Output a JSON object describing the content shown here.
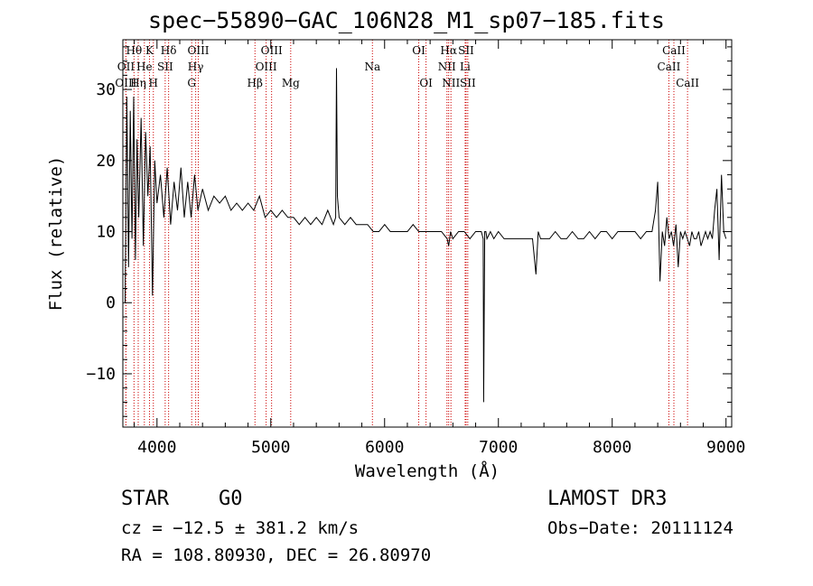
{
  "header": {
    "title": "spec−55890−GAC_106N28_M1_sp07−185.fits"
  },
  "info": {
    "classification": "STAR",
    "subclass": "G0",
    "survey": "LAMOST DR3",
    "cz": "cz = −12.5 ± 381.2 km/s",
    "obs_date": "Obs−Date: 20111124",
    "coords": "RA = 108.80930, DEC =  26.80970"
  },
  "colors": {
    "line": "#cc0000",
    "spectrum": "#000000",
    "axes": "#000000"
  },
  "chart_data": {
    "type": "line",
    "title": "spec−55890−GAC_106N28_M1_sp07−185.fits",
    "xlabel": "Wavelength (Å)",
    "ylabel": "Flux (relative)",
    "xlim": [
      3700,
      9050
    ],
    "ylim": [
      -17.5,
      37
    ],
    "x_ticks": [
      4000,
      5000,
      6000,
      7000,
      8000,
      9000
    ],
    "y_ticks": [
      -10,
      0,
      10,
      20,
      30
    ],
    "x_tick_labels": [
      "4000",
      "5000",
      "6000",
      "7000",
      "8000",
      "9000"
    ],
    "y_tick_labels": [
      "−10",
      "0",
      "10",
      "20",
      "30"
    ],
    "series": [
      {
        "name": "flux",
        "x": [
          3720,
          3735,
          3750,
          3765,
          3780,
          3795,
          3810,
          3825,
          3840,
          3860,
          3880,
          3900,
          3920,
          3940,
          3960,
          3980,
          4000,
          4030,
          4060,
          4090,
          4120,
          4150,
          4180,
          4210,
          4240,
          4270,
          4300,
          4330,
          4360,
          4400,
          4450,
          4500,
          4550,
          4600,
          4650,
          4700,
          4750,
          4800,
          4850,
          4900,
          4950,
          5000,
          5050,
          5100,
          5150,
          5200,
          5250,
          5300,
          5350,
          5400,
          5450,
          5500,
          5550,
          5570,
          5577,
          5585,
          5600,
          5650,
          5700,
          5750,
          5800,
          5850,
          5900,
          5950,
          6000,
          6050,
          6100,
          6150,
          6200,
          6250,
          6300,
          6350,
          6400,
          6450,
          6500,
          6550,
          6563,
          6580,
          6600,
          6650,
          6700,
          6750,
          6800,
          6850,
          6866,
          6870,
          6880,
          6890,
          6900,
          6930,
          6960,
          7000,
          7050,
          7100,
          7150,
          7200,
          7250,
          7300,
          7330,
          7350,
          7370,
          7400,
          7450,
          7500,
          7550,
          7600,
          7650,
          7700,
          7750,
          7800,
          7850,
          7900,
          7950,
          8000,
          8050,
          8100,
          8150,
          8200,
          8250,
          8300,
          8350,
          8380,
          8400,
          8420,
          8440,
          8460,
          8480,
          8500,
          8520,
          8540,
          8560,
          8580,
          8600,
          8620,
          8640,
          8660,
          8680,
          8700,
          8720,
          8740,
          8760,
          8780,
          8800,
          8820,
          8840,
          8860,
          8880,
          8900,
          8920,
          8940,
          8960,
          8980,
          9000
        ],
        "values": [
          0,
          29,
          5,
          27,
          9,
          29,
          6,
          23,
          12,
          26,
          8,
          24,
          15,
          22,
          1,
          20,
          14,
          18,
          12,
          19,
          11,
          17,
          13,
          19,
          12,
          17,
          12,
          18,
          13,
          16,
          13,
          15,
          14,
          15,
          13,
          14,
          13,
          14,
          13,
          15,
          12,
          13,
          12,
          13,
          12,
          12,
          11,
          12,
          11,
          12,
          11,
          13,
          11,
          12,
          33,
          15,
          12,
          11,
          12,
          11,
          11,
          11,
          10,
          10,
          11,
          10,
          10,
          10,
          10,
          11,
          10,
          10,
          10,
          10,
          10,
          9,
          8,
          10,
          9,
          10,
          10,
          9,
          10,
          10,
          9,
          -14,
          10,
          10,
          9,
          10,
          9,
          10,
          9,
          9,
          9,
          9,
          9,
          9,
          4,
          10,
          9,
          9,
          9,
          10,
          9,
          9,
          10,
          9,
          9,
          10,
          9,
          10,
          10,
          9,
          10,
          10,
          10,
          10,
          9,
          10,
          10,
          13,
          17,
          3,
          10,
          8,
          12,
          9,
          10,
          8,
          11,
          5,
          10,
          9,
          10,
          9,
          8,
          10,
          9,
          9,
          10,
          8,
          9,
          10,
          9,
          10,
          9,
          13,
          16,
          6,
          18,
          10,
          9
        ]
      }
    ],
    "lines": [
      {
        "label": "Hθ",
        "x": 3798,
        "row": 0
      },
      {
        "label": "OII",
        "x": 3727,
        "row": 1
      },
      {
        "label": "OIII",
        "x": 3727,
        "row": 2
      },
      {
        "label": "K",
        "x": 3934,
        "row": 0
      },
      {
        "label": "He",
        "x": 3889,
        "row": 1
      },
      {
        "label": "Hη",
        "x": 3835,
        "row": 2
      },
      {
        "label": "Hδ",
        "x": 4102,
        "row": 0
      },
      {
        "label": "SII",
        "x": 4072,
        "row": 1
      },
      {
        "label": "H",
        "x": 3968,
        "row": 2
      },
      {
        "label": "OIII",
        "x": 4363,
        "row": 0
      },
      {
        "label": "Hγ",
        "x": 4340,
        "row": 1
      },
      {
        "label": "G",
        "x": 4305,
        "row": 2
      },
      {
        "label": "OIII",
        "x": 5007,
        "row": 0
      },
      {
        "label": "OIII",
        "x": 4959,
        "row": 1
      },
      {
        "label": "Hβ",
        "x": 4861,
        "row": 2
      },
      {
        "label": "Mg",
        "x": 5175,
        "row": 2
      },
      {
        "label": "Na",
        "x": 5893,
        "row": 1
      },
      {
        "label": "OI",
        "x": 6300,
        "row": 0
      },
      {
        "label": "OI",
        "x": 6364,
        "row": 2
      },
      {
        "label": "Hα",
        "x": 6563,
        "row": 0
      },
      {
        "label": "NII",
        "x": 6548,
        "row": 1
      },
      {
        "label": "NII",
        "x": 6583,
        "row": 2
      },
      {
        "label": "SII",
        "x": 6716,
        "row": 0
      },
      {
        "label": "Li",
        "x": 6708,
        "row": 1
      },
      {
        "label": "SII",
        "x": 6731,
        "row": 2
      },
      {
        "label": "CaII",
        "x": 8542,
        "row": 0
      },
      {
        "label": "CaII",
        "x": 8498,
        "row": 1
      },
      {
        "label": "CaII",
        "x": 8662,
        "row": 2
      }
    ]
  }
}
